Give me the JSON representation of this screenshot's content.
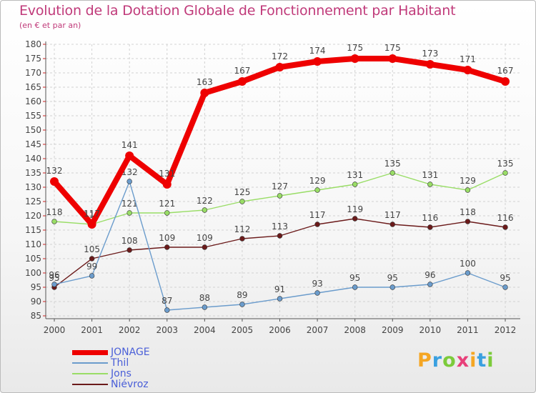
{
  "title": "Evolution de la Dotation Globale de Fonctionnement par Habitant",
  "subtitle": "(en € et par an)",
  "chart_data": {
    "type": "line",
    "title": "Evolution de la Dotation Globale de Fonctionnement par Habitant",
    "ylabel": "(en € et par an)",
    "xlabel": "",
    "x": [
      "2000",
      "2001",
      "2002",
      "2003",
      "2004",
      "2005",
      "2006",
      "2007",
      "2008",
      "2009",
      "2010",
      "2011",
      "2012"
    ],
    "ylim": [
      85,
      180
    ],
    "yticks": [
      85,
      90,
      95,
      100,
      105,
      110,
      115,
      120,
      125,
      130,
      135,
      140,
      145,
      150,
      155,
      160,
      165,
      170,
      175,
      180
    ],
    "grid": true,
    "series": [
      {
        "name": "JONAGE",
        "color": "#ee0000",
        "values": [
          132,
          117,
          141,
          131,
          163,
          167,
          172,
          174,
          175,
          175,
          173,
          171,
          167
        ]
      },
      {
        "name": "Thil",
        "color": "#6b9ccc",
        "values": [
          96,
          99,
          132,
          87,
          88,
          89,
          91,
          93,
          95,
          95,
          96,
          100,
          95
        ]
      },
      {
        "name": "Jons",
        "color": "#99dd66",
        "values": [
          118,
          117,
          121,
          121,
          122,
          125,
          127,
          129,
          131,
          135,
          131,
          129,
          135
        ]
      },
      {
        "name": "Niévroz",
        "color": "#6b1a1a",
        "values": [
          95,
          105,
          108,
          109,
          109,
          112,
          113,
          117,
          119,
          117,
          116,
          118,
          116
        ]
      }
    ]
  },
  "logo": {
    "letters": [
      "P",
      "r",
      "o",
      "x",
      "i",
      "t",
      "i"
    ],
    "colors": [
      "#f5a623",
      "#3aa0e0",
      "#7ccb3b",
      "#e8407a",
      "#f5a623",
      "#3aa0e0",
      "#7ccb3b"
    ]
  }
}
